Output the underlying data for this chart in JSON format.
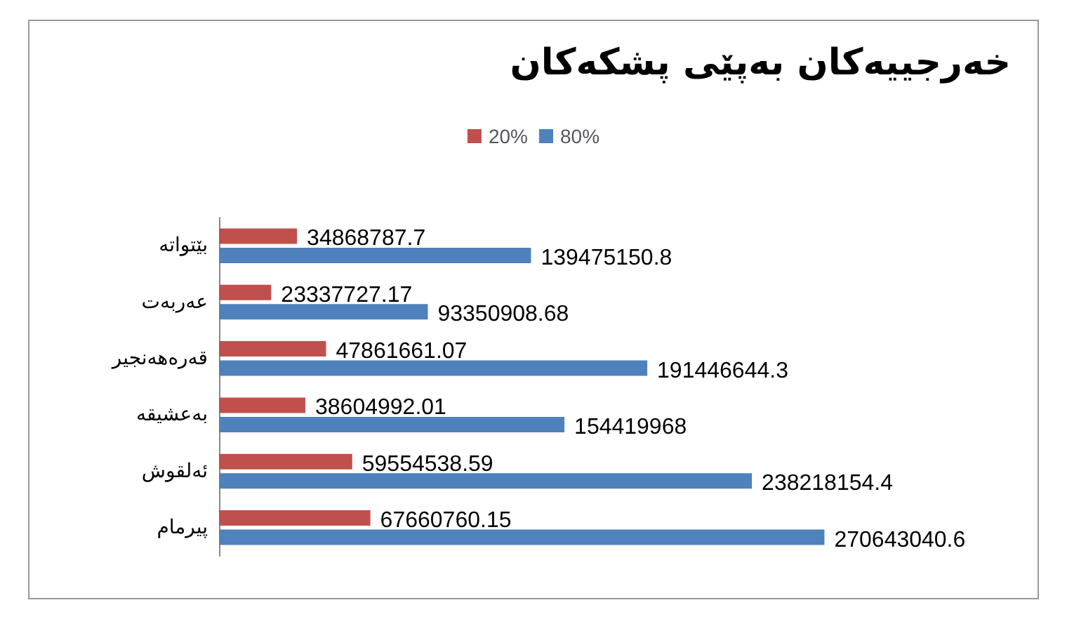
{
  "chart_data": {
    "type": "bar",
    "orientation": "horizontal",
    "title": "خەرجییەکان بەپێی پشکەکان",
    "categories": [
      "بێتواتە",
      "عەربەت",
      "قەرەهەنجیر",
      "بەعشیقە",
      "ئەلقوش",
      "پیرمام"
    ],
    "series": [
      {
        "name": "20%",
        "color": "#c0504d",
        "values": [
          34868787.7,
          23337727.17,
          47861661.07,
          38604992.01,
          59554538.59,
          67660760.15
        ]
      },
      {
        "name": "80%",
        "color": "#4f81bd",
        "values": [
          139475150.8,
          93350908.68,
          191446644.3,
          154419968,
          238218154.4,
          270643040.6
        ]
      }
    ],
    "data_labels": true,
    "legend": "top",
    "grid": false
  }
}
